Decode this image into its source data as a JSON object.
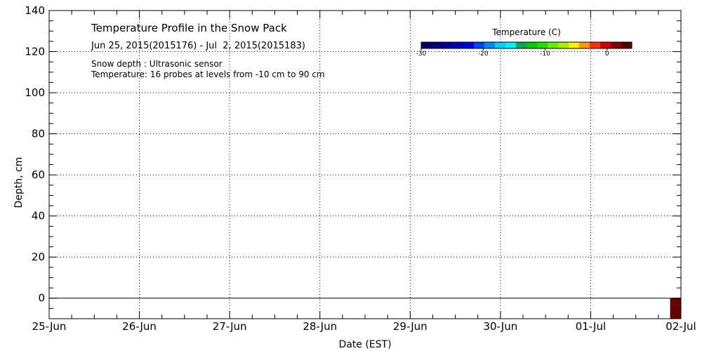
{
  "chart_data": {
    "type": "heatmap",
    "title": "Temperature Profile in the Snow Pack",
    "subtitle": "Jun 25, 2015(2015176) - Jul  2, 2015(2015183)",
    "notes": [
      "Snow depth : Ultrasonic sensor",
      "Temperature: 16 probes at levels from -10 cm to 90 cm"
    ],
    "xlabel": "Date (EST)",
    "ylabel": "Depth, cm",
    "x_ticks": [
      "25-Jun",
      "26-Jun",
      "27-Jun",
      "28-Jun",
      "29-Jun",
      "30-Jun",
      "01-Jul",
      "02-Jul"
    ],
    "xlim": [
      0,
      7
    ],
    "ylim": [
      -10,
      140
    ],
    "y_ticks": [
      0,
      20,
      40,
      60,
      80,
      100,
      120,
      140
    ],
    "grid": true,
    "zero_line": 0,
    "colorbar": {
      "title": "Temperature (C)",
      "range": [
        -30,
        4
      ],
      "ticks": [
        -30,
        -20,
        -10,
        0
      ],
      "colors": [
        "#000066",
        "#00007a",
        "#000099",
        "#0000bb",
        "#0000dd",
        "#0044ff",
        "#0088ff",
        "#00ccff",
        "#00eeff",
        "#00aa55",
        "#00cc00",
        "#22dd00",
        "#66ee00",
        "#aaee00",
        "#ffee00",
        "#ff9900",
        "#ff3300",
        "#cc0000",
        "#880000",
        "#550000"
      ]
    },
    "cells": [
      {
        "x_start": 6.88,
        "x_end": 7.0,
        "y_bottom": -10,
        "y_top": 0,
        "color": "#660000"
      }
    ]
  }
}
